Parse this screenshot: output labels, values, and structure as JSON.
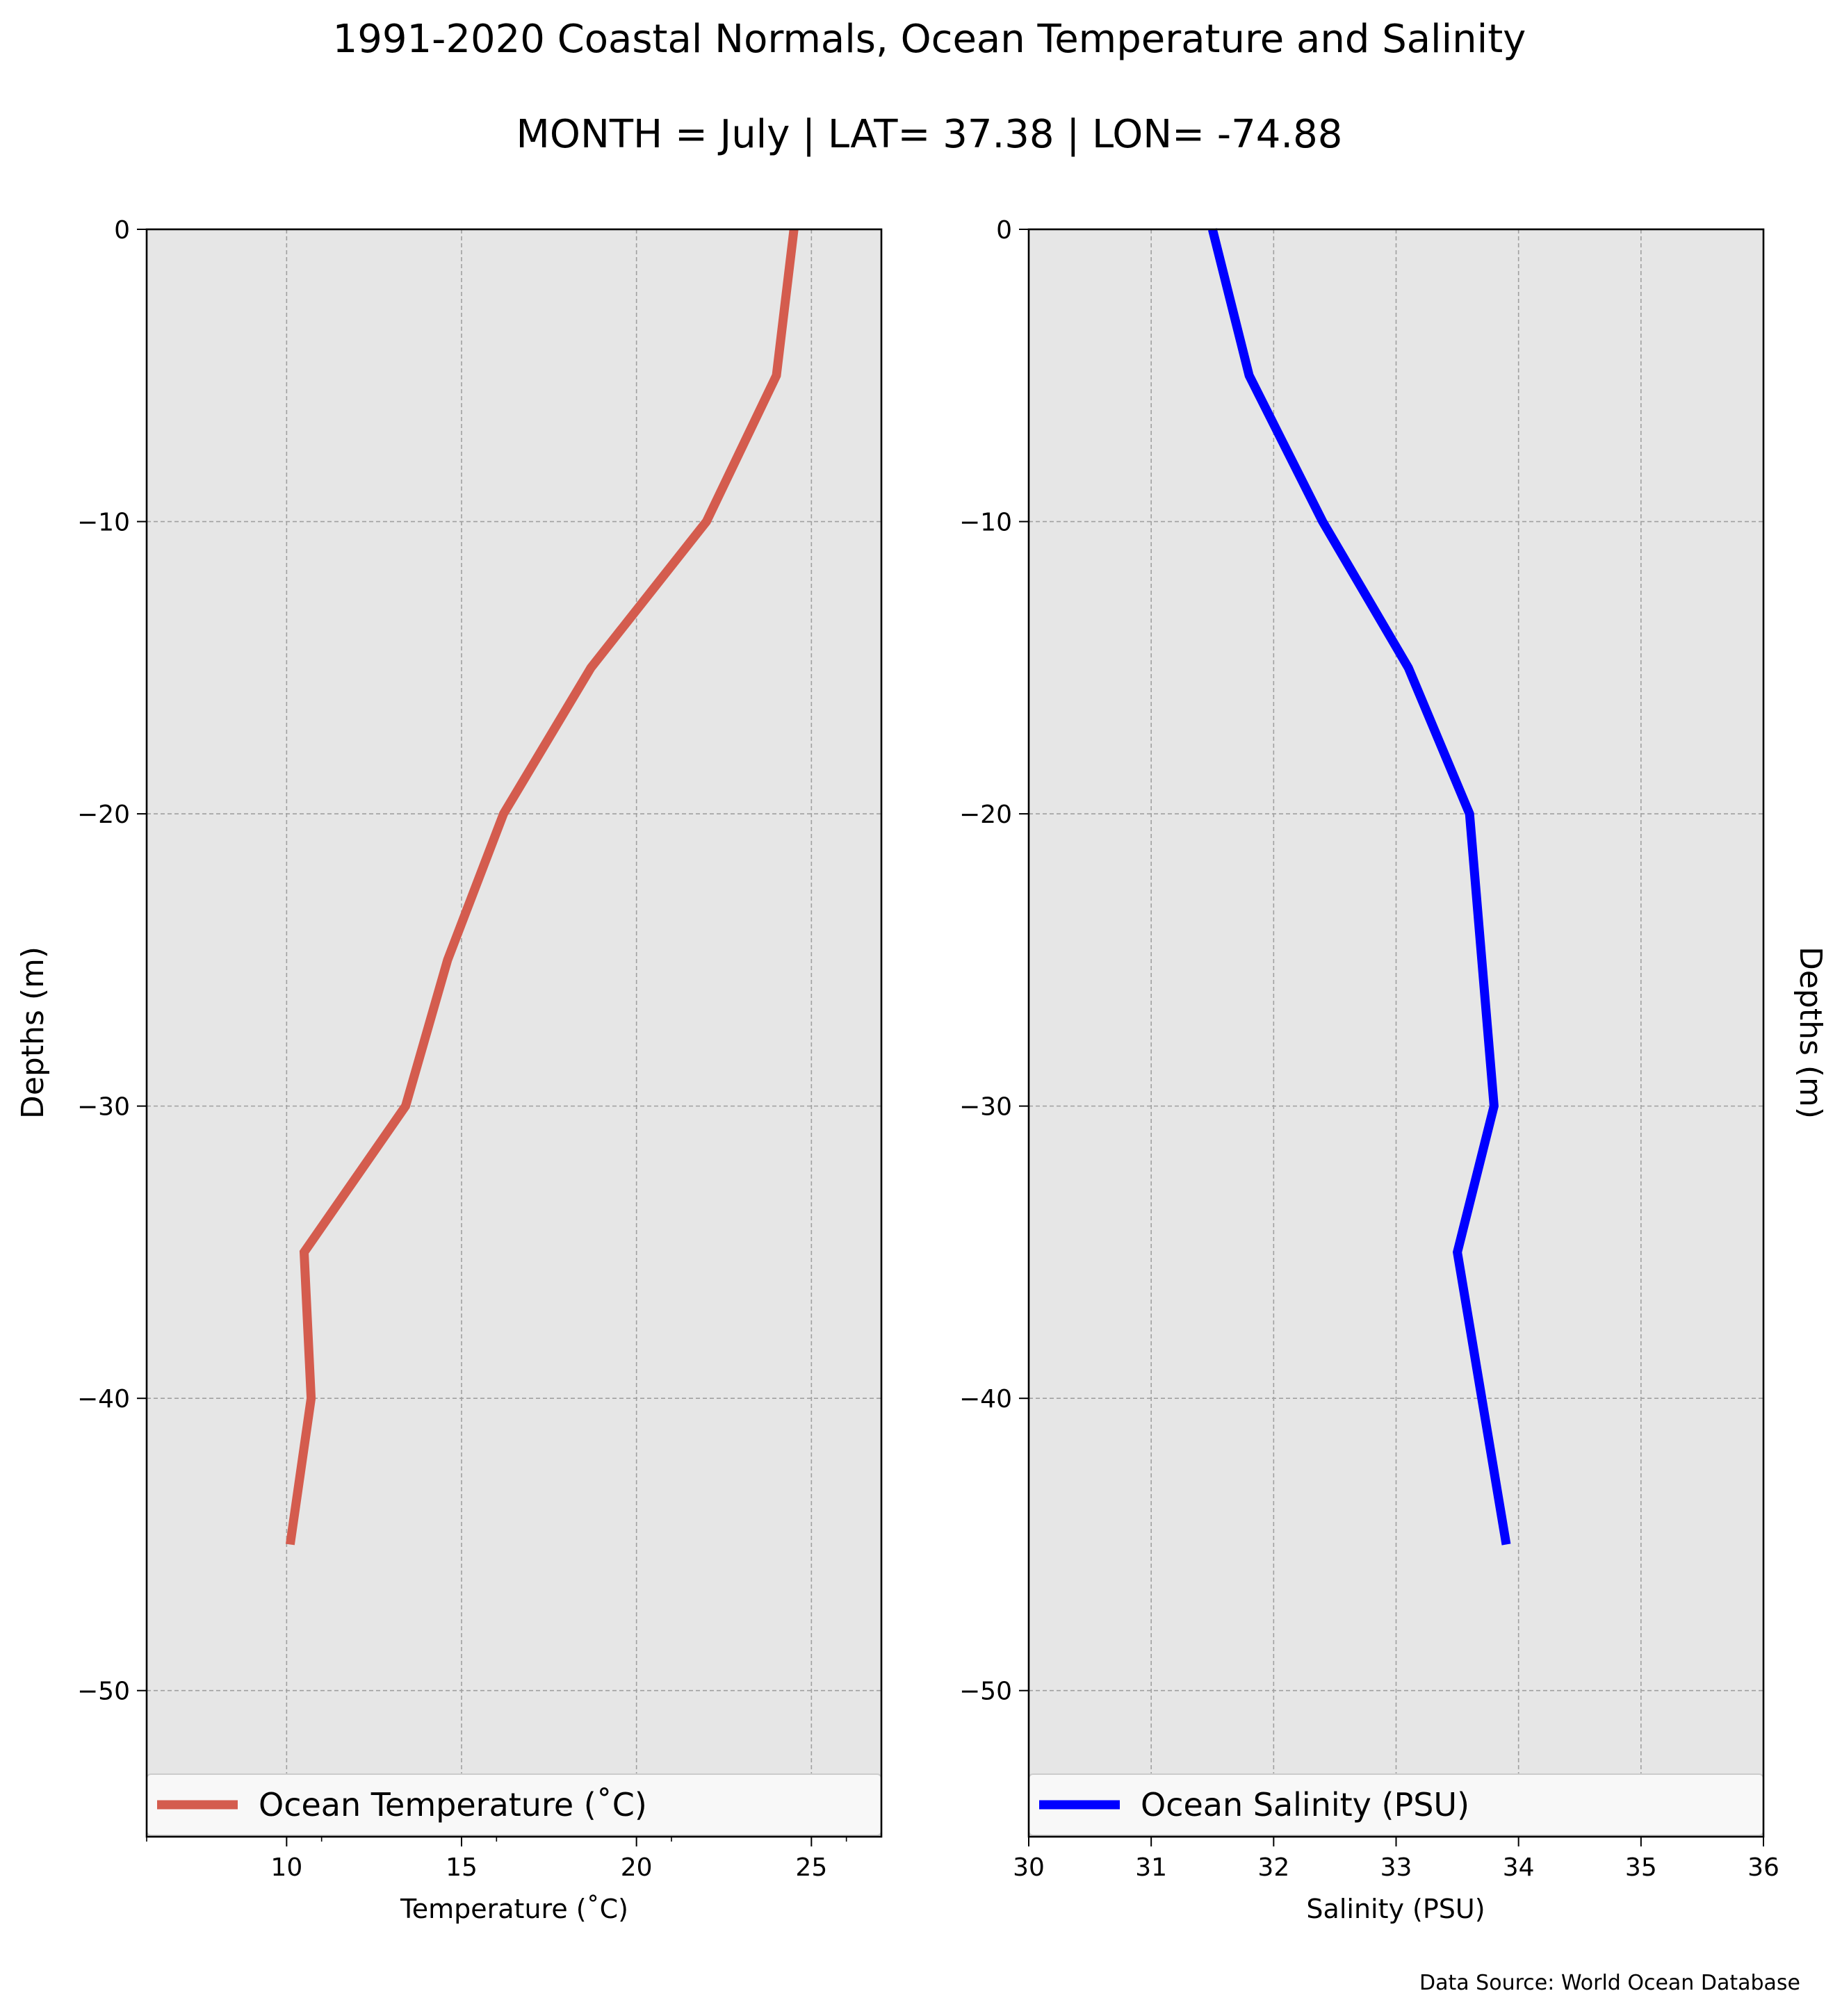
{
  "figure": {
    "title": "1991-2020 Coastal Normals, Ocean Temperature and Salinity",
    "subtitle": "MONTH = July | LAT= 37.38 | LON= -74.88",
    "source_note": "Data Source: World Ocean Database",
    "background_color": "#ffffff",
    "axes_face_color": "#e6e6e6",
    "grid_color": "#a0a0a0"
  },
  "chart_data": [
    {
      "type": "line",
      "xlabel": "Temperature ($^\\circ$C)",
      "xlabel_display": "Temperature (˚C)",
      "ylabel": "Depths (m)",
      "xlim": [
        6,
        27
      ],
      "ylim": [
        -55,
        0
      ],
      "xticks": [
        10,
        15,
        20,
        25
      ],
      "xtick_labels": [
        "10",
        "15",
        "20",
        "25"
      ],
      "x_minor_ticks": [
        6,
        11,
        16,
        21,
        26
      ],
      "yticks": [
        0,
        -10,
        -20,
        -30,
        -40,
        -50
      ],
      "ytick_labels": [
        "0",
        "−10",
        "−20",
        "−30",
        "−40",
        "−50"
      ],
      "grid": true,
      "legend": {
        "text": "Ocean Temperature ($^\\circ$C)",
        "display": "Ocean Temperature (˚C)",
        "location": "bottom"
      },
      "series": [
        {
          "name": "Ocean Temperature (˚C)",
          "color": "#d45c4e",
          "x": [
            24.5,
            24.0,
            22.0,
            18.7,
            16.2,
            14.6,
            13.4,
            10.5,
            10.7,
            10.1
          ],
          "y": [
            0,
            -5,
            -10,
            -15,
            -20,
            -25,
            -30,
            -35,
            -40,
            -45
          ]
        }
      ]
    },
    {
      "type": "line",
      "xlabel": "Salinity (PSU)",
      "xlabel_display": "Salinity (PSU)",
      "ylabel": "Depths (m)",
      "ylabel_position": "right",
      "xlim": [
        30,
        36
      ],
      "ylim": [
        -55,
        0
      ],
      "xticks": [
        30,
        31,
        32,
        33,
        34,
        35,
        36
      ],
      "xtick_labels": [
        "30",
        "31",
        "32",
        "33",
        "34",
        "35",
        "36"
      ],
      "yticks": [
        0,
        -10,
        -20,
        -30,
        -40,
        -50
      ],
      "ytick_labels": [
        "0",
        "−10",
        "−20",
        "−30",
        "−40",
        "−50"
      ],
      "grid": true,
      "legend": {
        "text": "Ocean Salinity (PSU)",
        "display": "Ocean Salinity (PSU)",
        "location": "bottom"
      },
      "series": [
        {
          "name": "Ocean Salinity (PSU)",
          "color": "#0000ff",
          "x": [
            31.5,
            31.8,
            32.4,
            33.1,
            33.6,
            33.7,
            33.8,
            33.5,
            33.7,
            33.9
          ],
          "y": [
            0,
            -5,
            -10,
            -15,
            -20,
            -25,
            -30,
            -35,
            -40,
            -45
          ]
        }
      ]
    }
  ]
}
